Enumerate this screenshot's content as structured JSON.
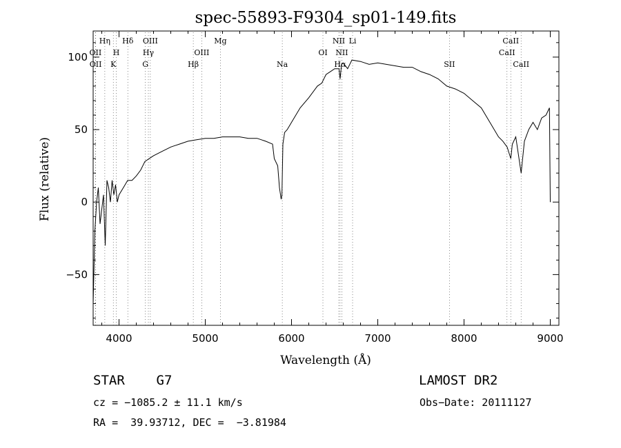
{
  "chart_data": {
    "type": "line",
    "title": "spec-55893-F9304_sp01-149.fits",
    "xlabel": "Wavelength (Å)",
    "ylabel": "Flux (relative)",
    "xlim": [
      3700,
      9100
    ],
    "ylim": [
      -85,
      118
    ],
    "xticks": [
      4000,
      5000,
      6000,
      7000,
      8000,
      9000
    ],
    "yticks": [
      -50,
      0,
      50,
      100
    ],
    "grid": false,
    "series": [
      {
        "x": [
          3700,
          3720,
          3740,
          3760,
          3780,
          3800,
          3820,
          3840,
          3860,
          3880,
          3900,
          3920,
          3940,
          3960,
          3980,
          4000,
          4050,
          4100,
          4150,
          4200,
          4250,
          4300,
          4350,
          4400,
          4500,
          4600,
          4700,
          4800,
          4900,
          5000,
          5100,
          5200,
          5300,
          5400,
          5500,
          5600,
          5700,
          5780,
          5800,
          5840,
          5860,
          5880,
          5889,
          5895,
          5900,
          5920,
          5950,
          6000,
          6100,
          6200,
          6300,
          6350,
          6400,
          6450,
          6500,
          6550,
          6563,
          6580,
          6600,
          6650,
          6700,
          6800,
          6900,
          7000,
          7100,
          7200,
          7300,
          7400,
          7500,
          7600,
          7700,
          7800,
          7900,
          8000,
          8100,
          8200,
          8300,
          8400,
          8450,
          8500,
          8542,
          8560,
          8600,
          8662,
          8700,
          8750,
          8800,
          8850,
          8900,
          8950,
          8990,
          9000
        ],
        "y": [
          -70,
          -20,
          0,
          10,
          -15,
          -5,
          5,
          -30,
          15,
          10,
          0,
          15,
          5,
          12,
          0,
          5,
          10,
          15,
          15,
          18,
          22,
          28,
          30,
          32,
          35,
          38,
          40,
          42,
          43,
          44,
          44,
          45,
          45,
          45,
          44,
          44,
          42,
          40,
          30,
          25,
          10,
          2,
          5,
          25,
          40,
          48,
          50,
          55,
          65,
          72,
          80,
          82,
          88,
          90,
          92,
          92,
          85,
          95,
          96,
          92,
          98,
          97,
          95,
          96,
          95,
          94,
          93,
          93,
          90,
          88,
          85,
          80,
          78,
          75,
          70,
          65,
          55,
          45,
          42,
          38,
          30,
          40,
          45,
          20,
          42,
          50,
          55,
          50,
          58,
          60,
          65,
          0
        ]
      }
    ],
    "line_markers": [
      {
        "label": "Hη",
        "wavelength": 3835,
        "row": 1
      },
      {
        "label": "OII",
        "wavelength": 3727,
        "row": 2
      },
      {
        "label": "H",
        "wavelength": 3968,
        "row": 2
      },
      {
        "label": "OII",
        "wavelength": 3729,
        "row": 3
      },
      {
        "label": "K",
        "wavelength": 3934,
        "row": 3
      },
      {
        "label": "Hδ",
        "wavelength": 4102,
        "row": 1
      },
      {
        "label": "OIII",
        "wavelength": 4363,
        "row": 1
      },
      {
        "label": "Hγ",
        "wavelength": 4340,
        "row": 2
      },
      {
        "label": "G",
        "wavelength": 4305,
        "row": 3
      },
      {
        "label": "Mg",
        "wavelength": 5175,
        "row": 1
      },
      {
        "label": "OIII",
        "wavelength": 4959,
        "row": 2
      },
      {
        "label": "Hβ",
        "wavelength": 4861,
        "row": 3
      },
      {
        "label": "Na",
        "wavelength": 5893,
        "row": 3
      },
      {
        "label": "OI",
        "wavelength": 6364,
        "row": 2
      },
      {
        "label": "NII",
        "wavelength": 6548,
        "row": 1
      },
      {
        "label": "Li",
        "wavelength": 6708,
        "row": 1
      },
      {
        "label": "NII",
        "wavelength": 6583,
        "row": 2
      },
      {
        "label": "Hα",
        "wavelength": 6563,
        "row": 3
      },
      {
        "label": "SII",
        "wavelength": 7831,
        "row": 3
      },
      {
        "label": "CaII",
        "wavelength": 8542,
        "row": 1
      },
      {
        "label": "CaII",
        "wavelength": 8498,
        "row": 2
      },
      {
        "label": "CaII",
        "wavelength": 8662,
        "row": 3
      }
    ]
  },
  "info": {
    "object_line": "STAR    G7",
    "survey": "LAMOST DR2",
    "velocity_line": "cz = −1085.2 ± 11.1 km/s",
    "obs_date_line": "Obs−Date: 20111127",
    "coords_line": "RA =  39.93712, DEC =  −3.81984"
  }
}
